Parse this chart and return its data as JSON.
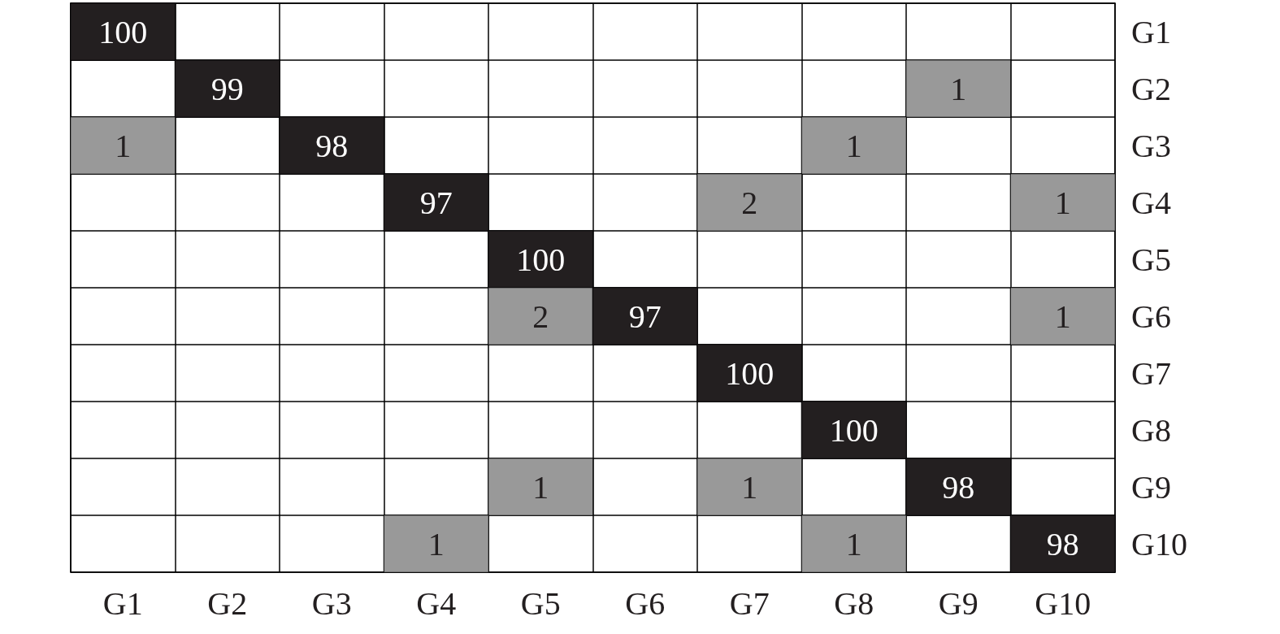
{
  "chart_data": {
    "type": "heatmap",
    "categories": [
      "G1",
      "G2",
      "G3",
      "G4",
      "G5",
      "G6",
      "G7",
      "G8",
      "G9",
      "G10"
    ],
    "y_categories": [
      "G1",
      "G2",
      "G3",
      "G4",
      "G5",
      "G6",
      "G7",
      "G8",
      "G9",
      "G10"
    ],
    "cells": [
      [
        100,
        null,
        null,
        null,
        null,
        null,
        null,
        null,
        null,
        null
      ],
      [
        null,
        99,
        null,
        null,
        null,
        null,
        null,
        null,
        1,
        null
      ],
      [
        1,
        null,
        98,
        null,
        null,
        null,
        null,
        1,
        null,
        null
      ],
      [
        null,
        null,
        null,
        97,
        null,
        null,
        2,
        null,
        null,
        1
      ],
      [
        null,
        null,
        null,
        null,
        100,
        null,
        null,
        null,
        null,
        null
      ],
      [
        null,
        null,
        null,
        null,
        2,
        97,
        null,
        null,
        null,
        1
      ],
      [
        null,
        null,
        null,
        null,
        null,
        null,
        100,
        null,
        null,
        null
      ],
      [
        null,
        null,
        null,
        null,
        null,
        null,
        null,
        100,
        null,
        null
      ],
      [
        null,
        null,
        null,
        null,
        1,
        null,
        1,
        null,
        98,
        null
      ],
      [
        null,
        null,
        null,
        1,
        null,
        null,
        null,
        1,
        null,
        98
      ]
    ],
    "data_labels": true,
    "grid": true
  }
}
